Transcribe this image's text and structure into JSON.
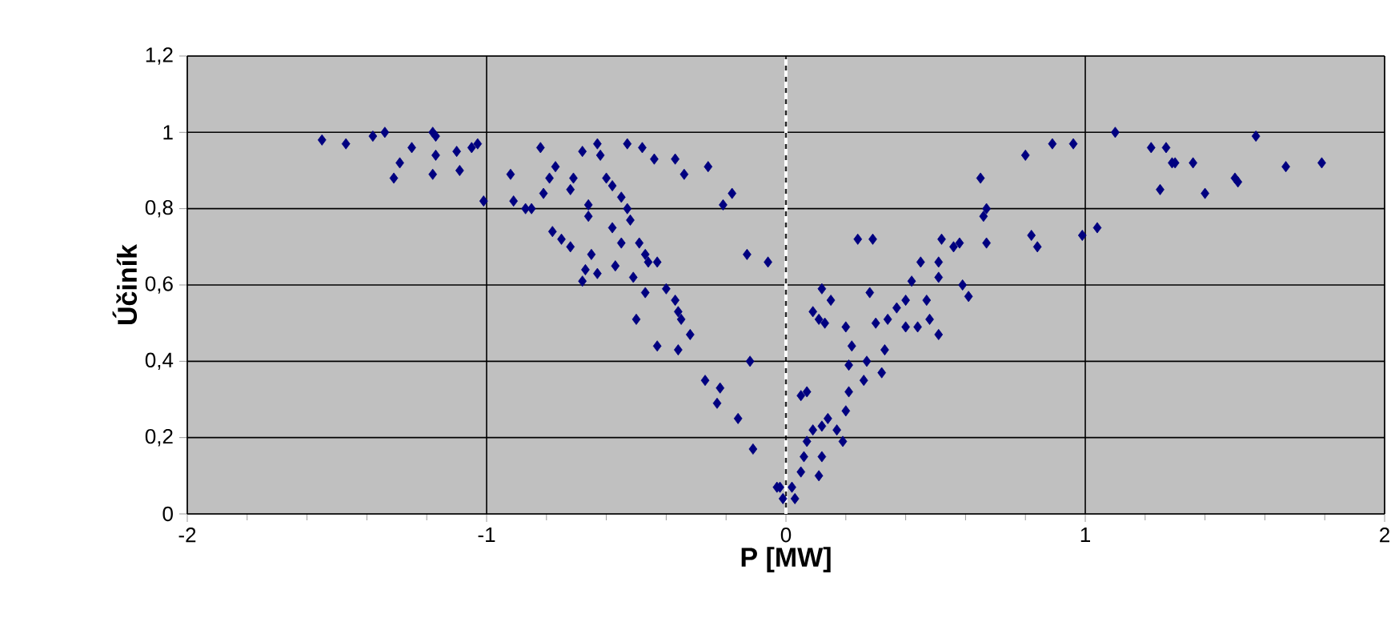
{
  "chart_data": {
    "type": "scatter",
    "xlabel": "P [MW]",
    "ylabel": "Účiník",
    "xlim": [
      -2,
      2
    ],
    "ylim": [
      0,
      1.2
    ],
    "xticks": [
      -2,
      {
        "value": -1.8,
        "label": null
      },
      {
        "value": -1.6,
        "label": null
      },
      {
        "value": -1.4,
        "label": null
      },
      {
        "value": -1.2,
        "label": null
      },
      -1,
      {
        "value": -0.8,
        "label": null
      },
      {
        "value": -0.6,
        "label": null
      },
      {
        "value": -0.4,
        "label": null
      },
      {
        "value": -0.2,
        "label": null
      },
      0,
      {
        "value": 0.2,
        "label": null
      },
      {
        "value": 0.4,
        "label": null
      },
      {
        "value": 0.6,
        "label": null
      },
      {
        "value": 0.8,
        "label": null
      },
      1,
      {
        "value": 1.2,
        "label": null
      },
      {
        "value": 1.4,
        "label": null
      },
      {
        "value": 1.6,
        "label": null
      },
      {
        "value": 1.8,
        "label": null
      },
      2
    ],
    "yticks": [
      0,
      {
        "value": 0.2,
        "label": "0,2"
      },
      {
        "value": 0.4,
        "label": "0,4"
      },
      {
        "value": 0.6,
        "label": "0,6"
      },
      {
        "value": 0.8,
        "label": "0,8"
      },
      1,
      {
        "value": 1.2,
        "label": "1,2"
      }
    ],
    "grid": true,
    "marker": "diamond",
    "ref_lines": [
      {
        "axis": "x",
        "value": 0,
        "color": "#ffffff",
        "line_style": "dashed"
      }
    ],
    "series": [
      {
        "color": "#000080",
        "x": [
          -1.55,
          -1.47,
          -1.38,
          -1.34,
          -1.31,
          -1.29,
          -1.25,
          -1.18,
          -1.17,
          -1.17,
          -1.18,
          -1.1,
          -1.09,
          -1.05,
          -1.03,
          -1.01,
          -0.92,
          -0.91,
          -0.87,
          -0.85,
          -0.82,
          -0.81,
          -0.79,
          -0.77,
          -0.78,
          -0.75,
          -0.72,
          -0.72,
          -0.71,
          -0.68,
          -0.63,
          -0.62,
          -0.66,
          -0.66,
          -0.65,
          -0.67,
          -0.68,
          -0.63,
          -0.6,
          -0.58,
          -0.58,
          -0.57,
          -0.55,
          -0.55,
          -0.53,
          -0.52,
          -0.53,
          -0.48,
          -0.44,
          -0.51,
          -0.49,
          -0.47,
          -0.46,
          -0.43,
          -0.47,
          -0.5,
          -0.43,
          -0.36,
          -0.32,
          -0.4,
          -0.37,
          -0.36,
          -0.35,
          -0.37,
          -0.34,
          -0.26,
          -0.21,
          -0.18,
          -0.13,
          -0.06,
          -0.12,
          -0.27,
          -0.22,
          -0.23,
          -0.16,
          -0.11,
          -0.03,
          -0.01,
          -0.02,
          0.03,
          0.02,
          0.05,
          0.06,
          0.07,
          0.09,
          0.12,
          0.14,
          0.11,
          0.12,
          0.17,
          0.19,
          0.2,
          0.21,
          0.05,
          0.07,
          0.09,
          0.12,
          0.13,
          0.15,
          0.11,
          0.2,
          0.22,
          0.21,
          0.27,
          0.26,
          0.32,
          0.33,
          0.3,
          0.34,
          0.28,
          0.24,
          0.29,
          0.37,
          0.4,
          0.42,
          0.4,
          0.44,
          0.47,
          0.48,
          0.51,
          0.45,
          0.51,
          0.51,
          0.52,
          0.56,
          0.58,
          0.59,
          0.61,
          0.65,
          0.67,
          0.66,
          0.67,
          0.8,
          0.82,
          0.84,
          0.89,
          0.96,
          0.99,
          1.04,
          1.1,
          1.22,
          1.27,
          1.3,
          1.29,
          1.36,
          1.25,
          1.4,
          1.5,
          1.51,
          1.57,
          1.67,
          1.79
        ],
        "values": [
          0.98,
          0.97,
          0.99,
          1.0,
          0.88,
          0.92,
          0.96,
          1.0,
          0.99,
          0.94,
          0.89,
          0.95,
          0.9,
          0.96,
          0.97,
          0.82,
          0.89,
          0.82,
          0.8,
          0.8,
          0.96,
          0.84,
          0.88,
          0.91,
          0.74,
          0.72,
          0.7,
          0.85,
          0.88,
          0.95,
          0.97,
          0.94,
          0.81,
          0.78,
          0.68,
          0.64,
          0.61,
          0.63,
          0.88,
          0.86,
          0.75,
          0.65,
          0.71,
          0.83,
          0.8,
          0.77,
          0.97,
          0.96,
          0.93,
          0.62,
          0.71,
          0.68,
          0.66,
          0.66,
          0.58,
          0.51,
          0.44,
          0.43,
          0.47,
          0.59,
          0.56,
          0.53,
          0.51,
          0.93,
          0.89,
          0.91,
          0.81,
          0.84,
          0.68,
          0.66,
          0.4,
          0.35,
          0.33,
          0.29,
          0.25,
          0.17,
          0.07,
          0.04,
          0.07,
          0.04,
          0.07,
          0.11,
          0.15,
          0.19,
          0.22,
          0.23,
          0.25,
          0.1,
          0.15,
          0.22,
          0.19,
          0.27,
          0.32,
          0.31,
          0.32,
          0.53,
          0.59,
          0.5,
          0.56,
          0.51,
          0.49,
          0.44,
          0.39,
          0.4,
          0.35,
          0.37,
          0.43,
          0.5,
          0.51,
          0.58,
          0.72,
          0.72,
          0.54,
          0.56,
          0.61,
          0.49,
          0.49,
          0.56,
          0.51,
          0.47,
          0.66,
          0.66,
          0.62,
          0.72,
          0.7,
          0.71,
          0.6,
          0.57,
          0.88,
          0.8,
          0.78,
          0.71,
          0.94,
          0.73,
          0.7,
          0.97,
          0.97,
          0.73,
          0.75,
          1.0,
          0.96,
          0.96,
          0.92,
          0.92,
          0.92,
          0.85,
          0.84,
          0.88,
          0.87,
          0.99,
          0.91,
          0.92
        ]
      }
    ]
  }
}
